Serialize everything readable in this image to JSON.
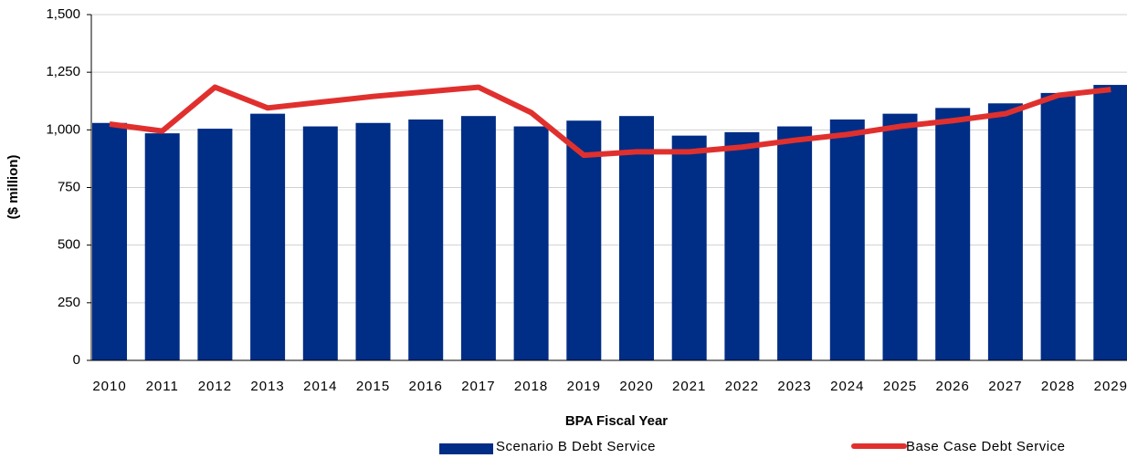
{
  "chart_data": {
    "type": "bar_line",
    "x_label": "BPA Fiscal Year",
    "y_label": "($ million)",
    "categories": [
      "2010",
      "2011",
      "2012",
      "2013",
      "2014",
      "2015",
      "2016",
      "2017",
      "2018",
      "2019",
      "2020",
      "2021",
      "2022",
      "2023",
      "2024",
      "2025",
      "2026",
      "2027",
      "2028",
      "2029"
    ],
    "series": [
      {
        "name": "Scenario B Debt Service",
        "type": "bar",
        "color": "#002d86",
        "values": [
          1030,
          985,
          1005,
          1070,
          1015,
          1030,
          1045,
          1060,
          1015,
          1040,
          1060,
          975,
          990,
          1015,
          1045,
          1070,
          1095,
          1115,
          1160,
          1195
        ]
      },
      {
        "name": "Base Case Debt Service",
        "type": "line",
        "color": "#e0302e",
        "values": [
          1025,
          995,
          1185,
          1095,
          1120,
          1145,
          1165,
          1185,
          1075,
          890,
          905,
          905,
          925,
          955,
          980,
          1015,
          1040,
          1070,
          1150,
          1175
        ]
      }
    ],
    "ylim": [
      0,
      1500
    ],
    "yticks": [
      0,
      250,
      500,
      750,
      {
        "value": 1000,
        "label": "1,000"
      },
      {
        "value": 1250,
        "label": "1,250"
      },
      {
        "value": 1500,
        "label": "1,500"
      }
    ],
    "grid": true,
    "legend": "bottom"
  }
}
